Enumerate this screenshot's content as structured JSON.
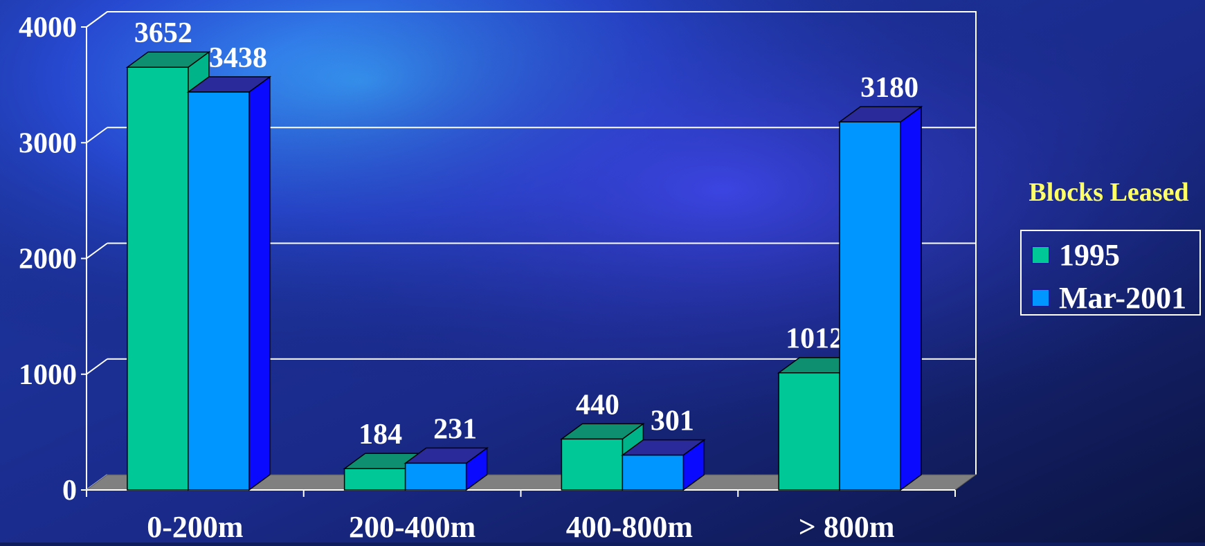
{
  "colors": {
    "series_1995": "#00c896",
    "series_1995_top": "#0d8f70",
    "series_1995_side": "#00b489",
    "series_2001": "#0096ff",
    "series_2001_top": "#2a2a9a",
    "series_2001_side": "#0a0aff",
    "floor": "#808080",
    "grid": "#ffffff",
    "legend_title": "#ffff66",
    "text": "#ffffff"
  },
  "chart_data": {
    "type": "bar",
    "categories": [
      "0-200m",
      "200-400m",
      "400-800m",
      "> 800m"
    ],
    "series": [
      {
        "name": "1995",
        "values": [
          3652,
          184,
          440,
          1012
        ],
        "value_labels": [
          "3652",
          "184",
          "440",
          "1012"
        ]
      },
      {
        "name": "Mar-2001",
        "values": [
          3438,
          231,
          301,
          3180
        ],
        "value_labels": [
          "3438",
          "231",
          "301",
          "3180"
        ]
      }
    ],
    "ylim": [
      0,
      4000
    ],
    "yticks": [
      "0",
      "1000",
      "2000",
      "3000",
      "4000"
    ],
    "legend_title": "Blocks Leased",
    "legend_position": "right",
    "grid": true,
    "three_d": true
  }
}
